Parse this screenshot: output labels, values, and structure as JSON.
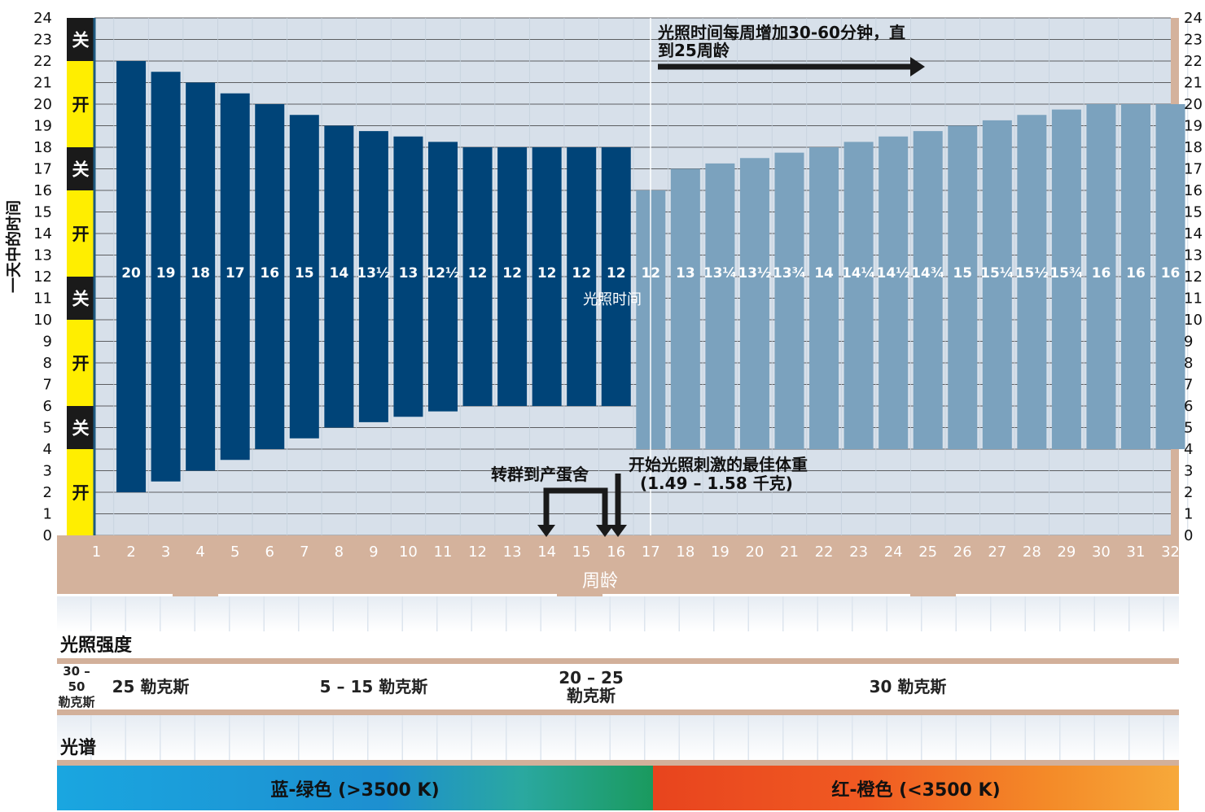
{
  "chart_data": {
    "type": "bar",
    "ylabel": "一天中的时间",
    "xlabel": "周龄",
    "ylim": [
      0,
      24
    ],
    "yticks": [
      0,
      1,
      2,
      3,
      4,
      5,
      6,
      7,
      8,
      9,
      10,
      11,
      12,
      13,
      14,
      15,
      16,
      17,
      18,
      19,
      20,
      21,
      22,
      23,
      24
    ],
    "categories": [
      "1",
      "2",
      "3",
      "4",
      "5",
      "6",
      "7",
      "8",
      "9",
      "10",
      "11",
      "12",
      "13",
      "14",
      "15",
      "16",
      "17",
      "18",
      "19",
      "20",
      "21",
      "22",
      "23",
      "24",
      "25",
      "26",
      "27",
      "28",
      "29",
      "30",
      "31",
      "32"
    ],
    "series": [
      {
        "name": "",
        "color": "#004478",
        "bars": [
          {
            "week": 2,
            "start": 2,
            "end": 22,
            "label": "20"
          },
          {
            "week": 3,
            "start": 2.5,
            "end": 21.5,
            "label": "19"
          },
          {
            "week": 4,
            "start": 3,
            "end": 21,
            "label": "18"
          },
          {
            "week": 5,
            "start": 3.5,
            "end": 20.5,
            "label": "17"
          },
          {
            "week": 6,
            "start": 4,
            "end": 20,
            "label": "16"
          },
          {
            "week": 7,
            "start": 4.5,
            "end": 19.5,
            "label": "15"
          },
          {
            "week": 8,
            "start": 5,
            "end": 19,
            "label": "14"
          },
          {
            "week": 9,
            "start": 5.25,
            "end": 18.75,
            "label": "13½"
          },
          {
            "week": 10,
            "start": 5.5,
            "end": 18.5,
            "label": "13"
          },
          {
            "week": 11,
            "start": 5.75,
            "end": 18.25,
            "label": "12½"
          },
          {
            "week": 12,
            "start": 6,
            "end": 18,
            "label": "12"
          },
          {
            "week": 13,
            "start": 6,
            "end": 18,
            "label": "12"
          },
          {
            "week": 14,
            "start": 6,
            "end": 18,
            "label": "12"
          },
          {
            "week": 15,
            "start": 6,
            "end": 18,
            "label": "12"
          },
          {
            "week": 16,
            "start": 6,
            "end": 18,
            "label": "12"
          }
        ]
      },
      {
        "name": "光照时间",
        "color": "#7ba2be",
        "bars": [
          {
            "week": 17,
            "start": 4,
            "end": 16,
            "label": "12"
          },
          {
            "week": 18,
            "start": 4,
            "end": 17,
            "label": "13"
          },
          {
            "week": 19,
            "start": 4,
            "end": 17.25,
            "label": "13¼"
          },
          {
            "week": 20,
            "start": 4,
            "end": 17.5,
            "label": "13½"
          },
          {
            "week": 21,
            "start": 4,
            "end": 17.75,
            "label": "13¾"
          },
          {
            "week": 22,
            "start": 4,
            "end": 18,
            "label": "14"
          },
          {
            "week": 23,
            "start": 4,
            "end": 18.25,
            "label": "14¼"
          },
          {
            "week": 24,
            "start": 4,
            "end": 18.5,
            "label": "14½"
          },
          {
            "week": 25,
            "start": 4,
            "end": 18.75,
            "label": "14¾"
          },
          {
            "week": 26,
            "start": 4,
            "end": 19,
            "label": "15"
          },
          {
            "week": 27,
            "start": 4,
            "end": 19.25,
            "label": "15¼"
          },
          {
            "week": 28,
            "start": 4,
            "end": 19.5,
            "label": "15½"
          },
          {
            "week": 29,
            "start": 4,
            "end": 19.75,
            "label": "15¾"
          },
          {
            "week": 30,
            "start": 4,
            "end": 20,
            "label": "16"
          },
          {
            "week": 31,
            "start": 4,
            "end": 20,
            "label": "16"
          },
          {
            "week": 32,
            "start": 4,
            "end": 20,
            "label": "16"
          }
        ]
      }
    ],
    "onoff": [
      {
        "from": 22,
        "to": 24,
        "label": "关",
        "state": "off"
      },
      {
        "from": 18,
        "to": 22,
        "label": "开",
        "state": "on"
      },
      {
        "from": 16,
        "to": 18,
        "label": "关",
        "state": "off"
      },
      {
        "from": 12,
        "to": 16,
        "label": "开",
        "state": "on"
      },
      {
        "from": 10,
        "to": 12,
        "label": "关",
        "state": "off"
      },
      {
        "from": 6,
        "to": 10,
        "label": "开",
        "state": "on"
      },
      {
        "from": 4,
        "to": 6,
        "label": "关",
        "state": "off"
      },
      {
        "from": 0,
        "to": 4,
        "label": "开",
        "state": "on"
      }
    ],
    "annotations": {
      "increase_text": "光照时间每周增加30-60分钟，直到25周龄",
      "increase_line1": "光照时间每周增加30-60分钟，直",
      "increase_line2": "到25周龄",
      "transfer_text": "转群到产蛋舍",
      "weight_line1": "开始光照刺激的最佳体重",
      "weight_line2": "(1.49 – 1.58 千克)"
    }
  },
  "colors": {
    "on": "#ffee00",
    "off": "#1a1a1a",
    "tan": "#d4b29c",
    "dark_bar": "#004478",
    "light_bar": "#7ba2be",
    "grid_bg": "#d7e0ea"
  },
  "intensity": {
    "title": "光照强度",
    "segments": [
      {
        "line1": "30 – 50",
        "line2": "勒克斯",
        "color": "#f3d18e"
      },
      {
        "line1": "25 勒克斯",
        "line2": "",
        "color": "#ecb45a"
      },
      {
        "line1": "5 – 15 勒克斯",
        "line2": "",
        "color": "#e1a225"
      },
      {
        "line1": "20 – 25",
        "line2": "勒克斯",
        "color": "#f0c070"
      },
      {
        "line1": "30 勒克斯",
        "line2": "",
        "color": "#f4d190"
      }
    ]
  },
  "spectrum": {
    "title": "光谱",
    "blue_label": "蓝-绿色 (>3500 K)",
    "red_label": "红-橙色 (<3500 K)"
  }
}
